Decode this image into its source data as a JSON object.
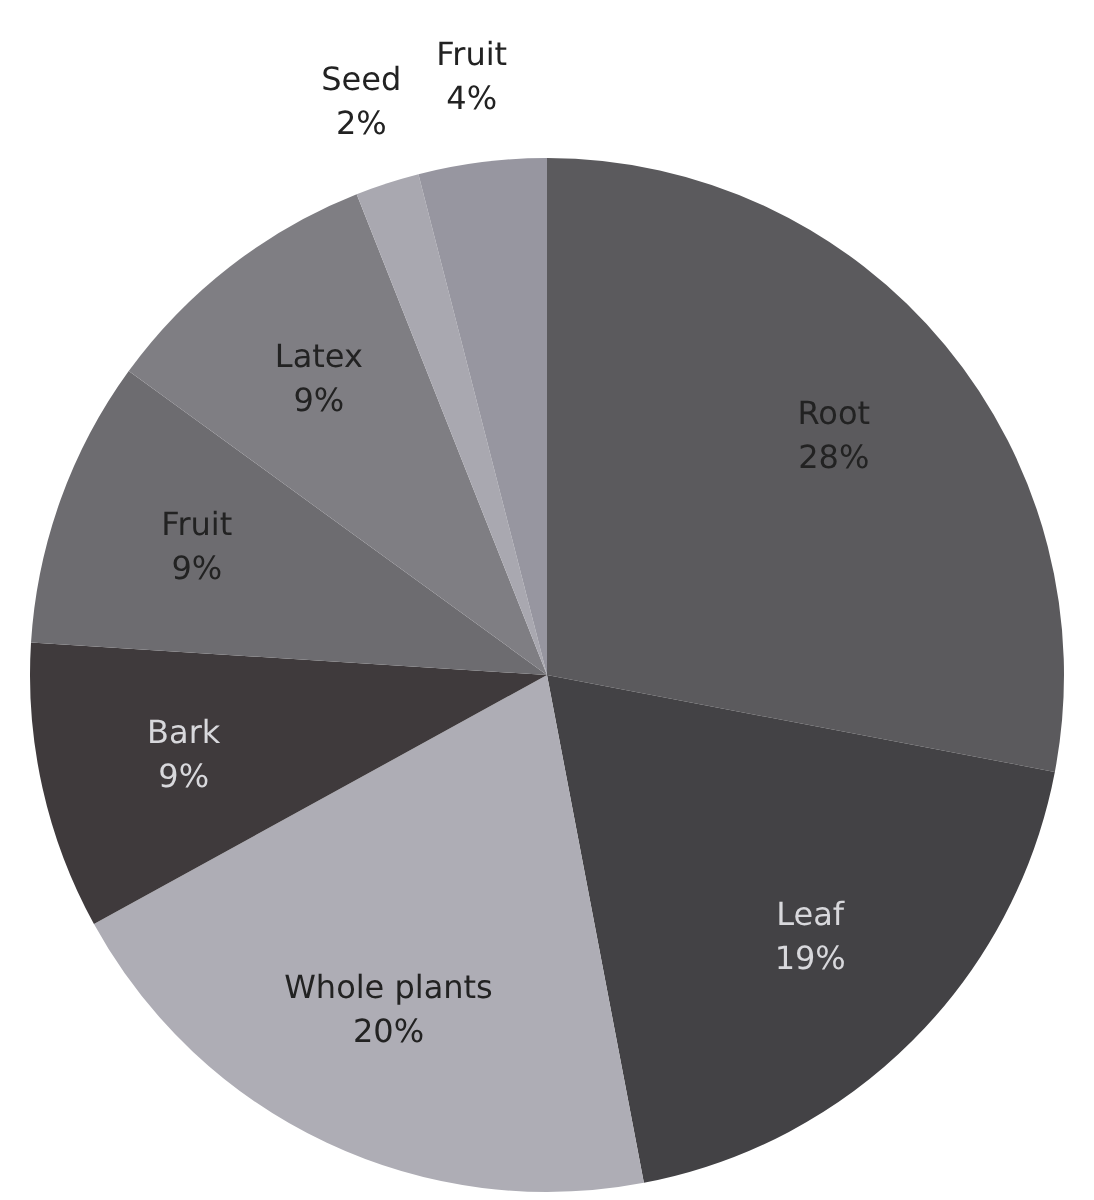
{
  "chart_data": {
    "type": "pie",
    "categories": [
      "Root",
      "Leaf",
      "Whole plants",
      "Bark",
      "Fruit",
      "Latex",
      "Seed",
      "Fruit"
    ],
    "values": [
      28,
      19,
      20,
      9,
      9,
      9,
      2,
      4
    ],
    "value_labels": [
      "28%",
      "19%",
      "20%",
      "9%",
      "9%",
      "9%",
      "2%",
      "4%"
    ],
    "colors": [
      "#5b5a5d",
      "#434245",
      "#aeadb5",
      "#3f3a3c",
      "#6d6c70",
      "#7f7e83",
      "#a9a8b0",
      "#9796a0"
    ]
  }
}
